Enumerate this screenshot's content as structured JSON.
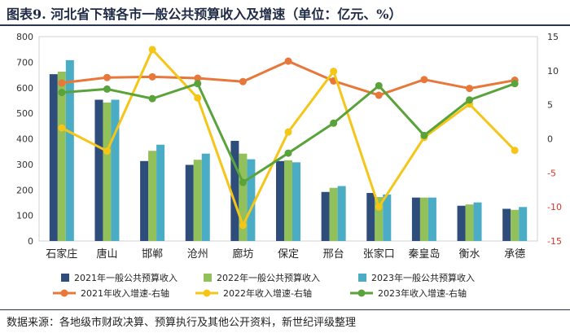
{
  "header": {
    "title": "图表9.  河北省下辖各市一般公共预算收入及增速（单位：亿元、%）"
  },
  "footer": {
    "source": "数据来源：各地级市财政决算、预算执行及其他公开资料，新世纪评级整理"
  },
  "chart_data": {
    "type": "bar",
    "title": "图表9.  河北省下辖各市一般公共预算收入及增速（单位：亿元、%）",
    "categories": [
      "石家庄",
      "唐山",
      "邯郸",
      "沧州",
      "廊坊",
      "保定",
      "邢台",
      "张家口",
      "秦皇岛",
      "衡水",
      "承德"
    ],
    "ylim": [
      0,
      800
    ],
    "yticks": [
      0,
      100,
      200,
      300,
      400,
      500,
      600,
      700,
      800
    ],
    "y2lim": [
      -15,
      15
    ],
    "y2ticks": [
      -15,
      -10,
      -5,
      0,
      5,
      10,
      15
    ],
    "legend_position": "bottom",
    "series": [
      {
        "name": "2021年一般公共预算收入",
        "type": "bar",
        "axis": "left",
        "color": "#2e4d7b",
        "values": [
          653,
          553,
          313,
          298,
          392,
          313,
          192,
          188,
          170,
          138,
          126
        ]
      },
      {
        "name": "2022年一般公共预算收入",
        "type": "bar",
        "axis": "left",
        "color": "#92c05a",
        "values": [
          663,
          542,
          353,
          318,
          342,
          316,
          208,
          172,
          170,
          143,
          122
        ]
      },
      {
        "name": "2023年一般公共预算收入",
        "type": "bar",
        "axis": "left",
        "color": "#4bacc6",
        "values": [
          708,
          553,
          377,
          342,
          320,
          308,
          215,
          182,
          170,
          151,
          133
        ]
      },
      {
        "name": "2021年收入增速-右轴",
        "type": "line",
        "axis": "right",
        "color": "#e8773a",
        "values": [
          8.2,
          9.0,
          9.1,
          8.9,
          8.4,
          11.4,
          8.5,
          6.4,
          8.7,
          7.4,
          8.6
        ]
      },
      {
        "name": "2022年收入增速-右轴",
        "type": "line",
        "axis": "right",
        "color": "#f5c518",
        "values": [
          1.6,
          -1.8,
          13.1,
          6.0,
          -12.7,
          1.0,
          9.9,
          -10.0,
          0.2,
          5.1,
          -1.7
        ]
      },
      {
        "name": "2023年收入增速-右轴",
        "type": "line",
        "axis": "right",
        "color": "#5aa33b",
        "values": [
          6.8,
          7.3,
          5.9,
          8.1,
          -6.4,
          -2.1,
          2.3,
          7.8,
          0.5,
          5.7,
          8.1
        ]
      }
    ]
  }
}
